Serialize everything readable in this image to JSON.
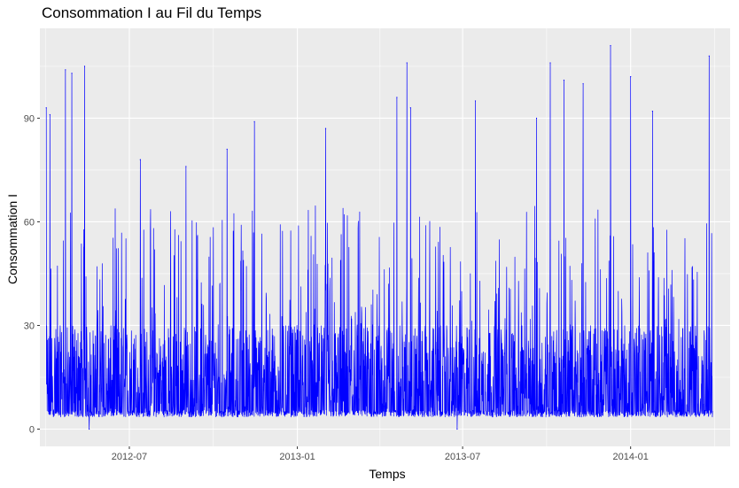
{
  "chart_data": {
    "type": "line",
    "title": "Consommation I au Fil du Temps",
    "xlabel": "Temps",
    "ylabel": "Consommation I",
    "x_ticks": [
      "2012-07",
      "2013-01",
      "2013-07",
      "2014-01"
    ],
    "y_ticks": [
      "0",
      "30",
      "60",
      "90"
    ],
    "xlim": [
      "2012-03-25",
      "2014-04-20"
    ],
    "ylim": [
      -5,
      116
    ],
    "grid": true,
    "panel_background": "#ebebeb",
    "series": [
      {
        "color": "#0000ff",
        "x_start": "2012-04-01",
        "x_end": "2014-03-31",
        "baseline_min": 3.5,
        "typical_band_max": 30,
        "notable_points": [
          {
            "x": "2012-04-01",
            "y": 93
          },
          {
            "x": "2012-04-05",
            "y": 91
          },
          {
            "x": "2012-04-22",
            "y": 104
          },
          {
            "x": "2012-04-29",
            "y": 103
          },
          {
            "x": "2012-05-13",
            "y": 105
          },
          {
            "x": "2012-05-18",
            "y": 0
          },
          {
            "x": "2012-07-13",
            "y": 78
          },
          {
            "x": "2012-09-01",
            "y": 76
          },
          {
            "x": "2012-10-16",
            "y": 81
          },
          {
            "x": "2012-11-15",
            "y": 89
          },
          {
            "x": "2013-02-01",
            "y": 87
          },
          {
            "x": "2013-04-20",
            "y": 96
          },
          {
            "x": "2013-05-01",
            "y": 106
          },
          {
            "x": "2013-05-05",
            "y": 93
          },
          {
            "x": "2013-06-25",
            "y": 0
          },
          {
            "x": "2013-07-15",
            "y": 95
          },
          {
            "x": "2013-09-20",
            "y": 90
          },
          {
            "x": "2013-10-05",
            "y": 106
          },
          {
            "x": "2013-10-20",
            "y": 101
          },
          {
            "x": "2013-11-10",
            "y": 100
          },
          {
            "x": "2013-12-10",
            "y": 111
          },
          {
            "x": "2014-01-01",
            "y": 102
          },
          {
            "x": "2014-01-25",
            "y": 92
          },
          {
            "x": "2014-03-28",
            "y": 108
          }
        ]
      }
    ]
  }
}
